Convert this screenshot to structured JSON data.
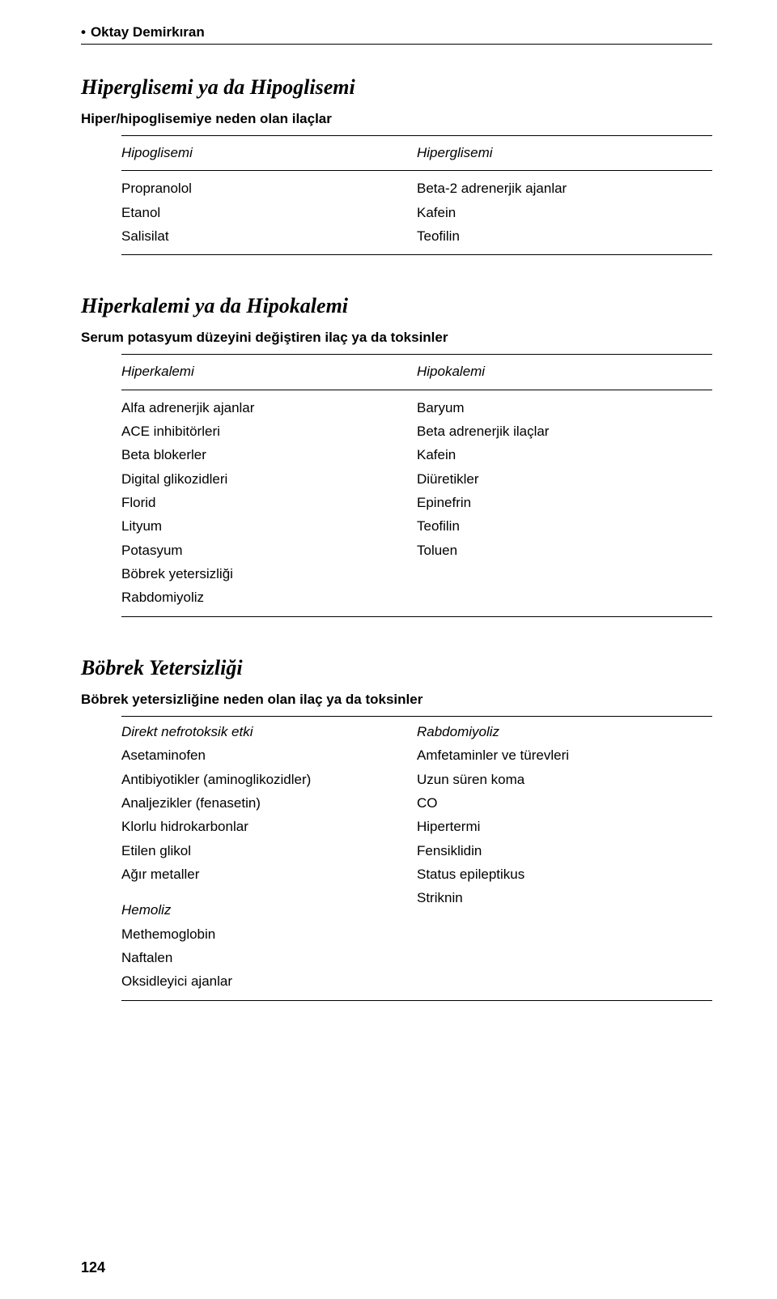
{
  "author": "Oktay Demirkıran",
  "section1": {
    "title": "Hiperglisemi ya da Hipoglisemi",
    "subtitle": "Hiper/hipoglisemiye neden olan ilaçlar",
    "headers": {
      "left": "Hipoglisemi",
      "right": "Hiperglisemi"
    },
    "rows": [
      {
        "l": "Propranolol",
        "r": "Beta-2 adrenerjik ajanlar"
      },
      {
        "l": "Etanol",
        "r": "Kafein"
      },
      {
        "l": "Salisilat",
        "r": "Teofilin"
      }
    ]
  },
  "section2": {
    "title": "Hiperkalemi ya da Hipokalemi",
    "subtitle": "Serum potasyum düzeyini değiştiren ilaç ya da toksinler",
    "headers": {
      "left": "Hiperkalemi",
      "right": "Hipokalemi"
    },
    "rows": [
      {
        "l": "Alfa adrenerjik ajanlar",
        "r": "Baryum"
      },
      {
        "l": "ACE inhibitörleri",
        "r": "Beta adrenerjik ilaçlar"
      },
      {
        "l": "Beta blokerler",
        "r": "Kafein"
      },
      {
        "l": "Digital glikozidleri",
        "r": "Diüretikler"
      },
      {
        "l": "Florid",
        "r": "Epinefrin"
      },
      {
        "l": "Lityum",
        "r": "Teofilin"
      },
      {
        "l": "Potasyum",
        "r": "Toluen"
      },
      {
        "l": "Böbrek yetersizliği",
        "r": ""
      },
      {
        "l": "Rabdomiyoliz",
        "r": ""
      }
    ]
  },
  "section3": {
    "title": "Böbrek Yetersizliği",
    "subtitle": "Böbrek yetersizliğine neden olan ilaç ya da toksinler",
    "left_group1_title": "Direkt nefrotoksik etki",
    "left_group1_items": [
      "Asetaminofen",
      "Antibiyotikler (aminoglikozidler)",
      "Analjezikler (fenasetin)",
      "Klorlu hidrokarbonlar",
      "Etilen glikol",
      "Ağır metaller"
    ],
    "left_group2_title": "Hemoliz",
    "left_group2_items": [
      "Methemoglobin",
      "Naftalen",
      "Oksidleyici ajanlar"
    ],
    "right_group1_title": "Rabdomiyoliz",
    "right_group1_items": [
      "Amfetaminler ve türevleri",
      "Uzun süren koma",
      "CO",
      "Hipertermi",
      "Fensiklidin",
      "Status epileptikus",
      "Striknin"
    ]
  },
  "page_number": "124"
}
